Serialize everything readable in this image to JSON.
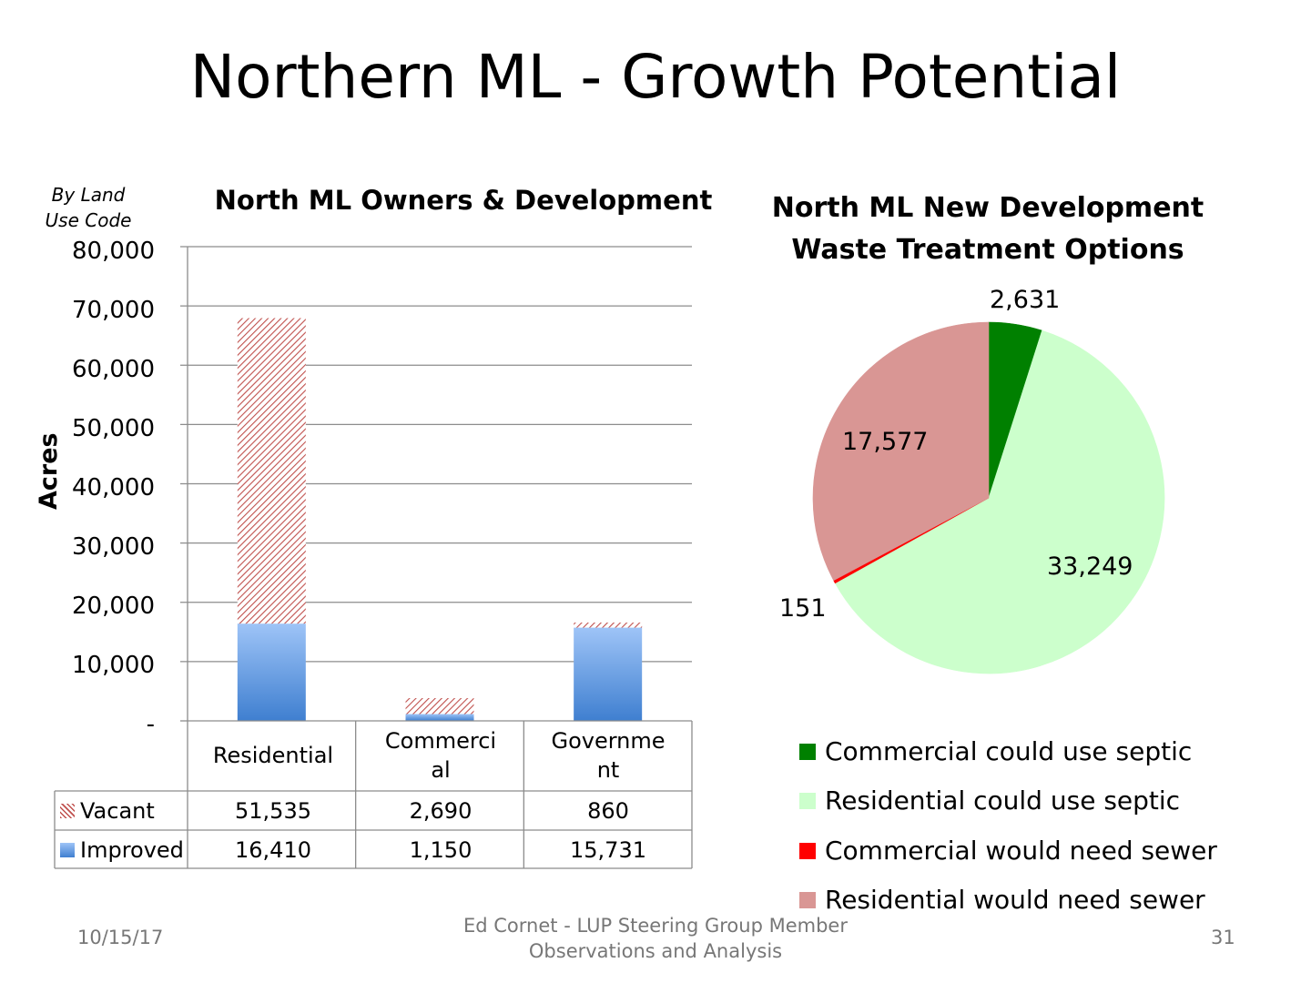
{
  "slide": {
    "title": "Northern ML - Growth Potential",
    "footer_date": "10/15/17",
    "footer_line1": "Ed Cornet - LUP Steering Group Member",
    "footer_line2": "Observations and Analysis",
    "page_number": "31"
  },
  "chart_data": [
    {
      "type": "bar",
      "stacked": true,
      "title": "North ML Owners & Development",
      "note_line1": "By Land",
      "note_line2": "Use Code",
      "ylabel": "Acres",
      "ylim": [
        0,
        80000
      ],
      "yticks": [
        "-",
        "10,000",
        "20,000",
        "30,000",
        "40,000",
        "50,000",
        "60,000",
        "70,000",
        "80,000"
      ],
      "categories": [
        {
          "line1": "Residential",
          "line2": ""
        },
        {
          "line1": "Commerci",
          "line2": "al"
        },
        {
          "line1": "Governme",
          "line2": "nt"
        }
      ],
      "series": [
        {
          "name": "Improved",
          "values": [
            16410,
            1150,
            15731
          ],
          "labels": [
            "16,410",
            "1,150",
            "15,731"
          ],
          "color": "#6a9fe0"
        },
        {
          "name": "Vacant",
          "values": [
            51535,
            2690,
            860
          ],
          "labels": [
            "51,535",
            "2,690",
            "860"
          ],
          "color": "#c0504d"
        }
      ]
    },
    {
      "type": "pie",
      "title_line1": "North ML New Development",
      "title_line2": "Waste Treatment Options",
      "slices": [
        {
          "name": "Commercial could use septic",
          "value": 2631,
          "label": "2,631",
          "color": "#008000"
        },
        {
          "name": "Residential could use septic",
          "value": 33249,
          "label": "33,249",
          "color": "#ccffcc"
        },
        {
          "name": "Commercial would need sewer",
          "value": 151,
          "label": "151",
          "color": "#ff0000"
        },
        {
          "name": "Residential would need sewer",
          "value": 17577,
          "label": "17,577",
          "color": "#d99694"
        }
      ]
    }
  ]
}
